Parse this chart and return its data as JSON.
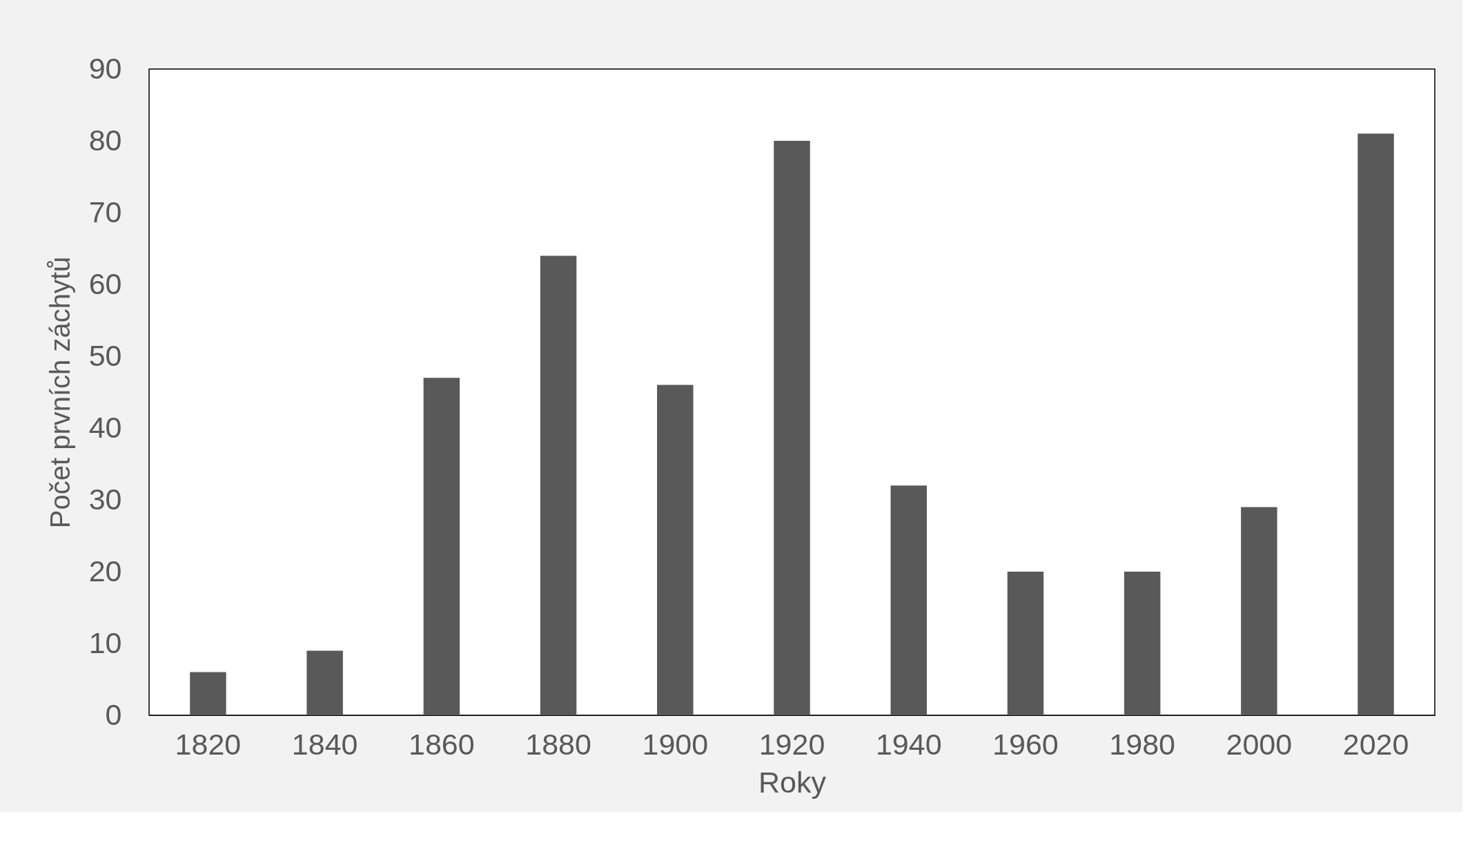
{
  "chart_data": {
    "type": "bar",
    "xlabel": "Roky",
    "ylabel": "Počet prvních záchytů",
    "categories": [
      "1820",
      "1840",
      "1860",
      "1880",
      "1900",
      "1920",
      "1940",
      "1960",
      "1980",
      "2000",
      "2020"
    ],
    "values": [
      6,
      9,
      47,
      64,
      46,
      80,
      32,
      20,
      20,
      29,
      81
    ],
    "color": "#595959",
    "ylim": [
      0,
      90
    ],
    "yticks": [
      0,
      10,
      20,
      30,
      40,
      50,
      60,
      70,
      80,
      90
    ],
    "grid": false
  }
}
